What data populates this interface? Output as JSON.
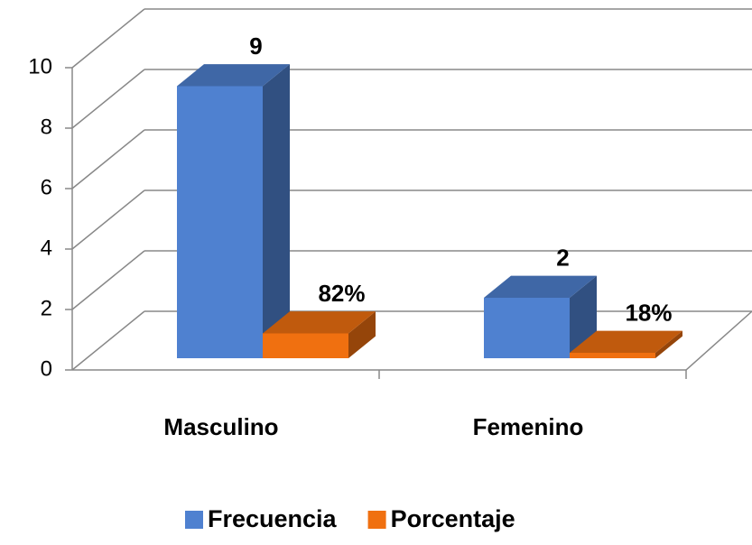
{
  "chart_data": {
    "type": "bar3d",
    "categories": [
      "Masculino",
      "Femenino"
    ],
    "series": [
      {
        "name": "Frecuencia",
        "color": "#4f81d0",
        "values": [
          9,
          2
        ]
      },
      {
        "name": "Porcentaje",
        "color": "#f07010",
        "values": [
          0.82,
          0.18
        ],
        "value_labels": [
          "82%",
          "18%"
        ]
      }
    ],
    "ylim": [
      0,
      10
    ],
    "yticks": [
      0,
      2,
      4,
      6,
      8,
      10
    ],
    "grid": true,
    "legend": "bottom"
  }
}
